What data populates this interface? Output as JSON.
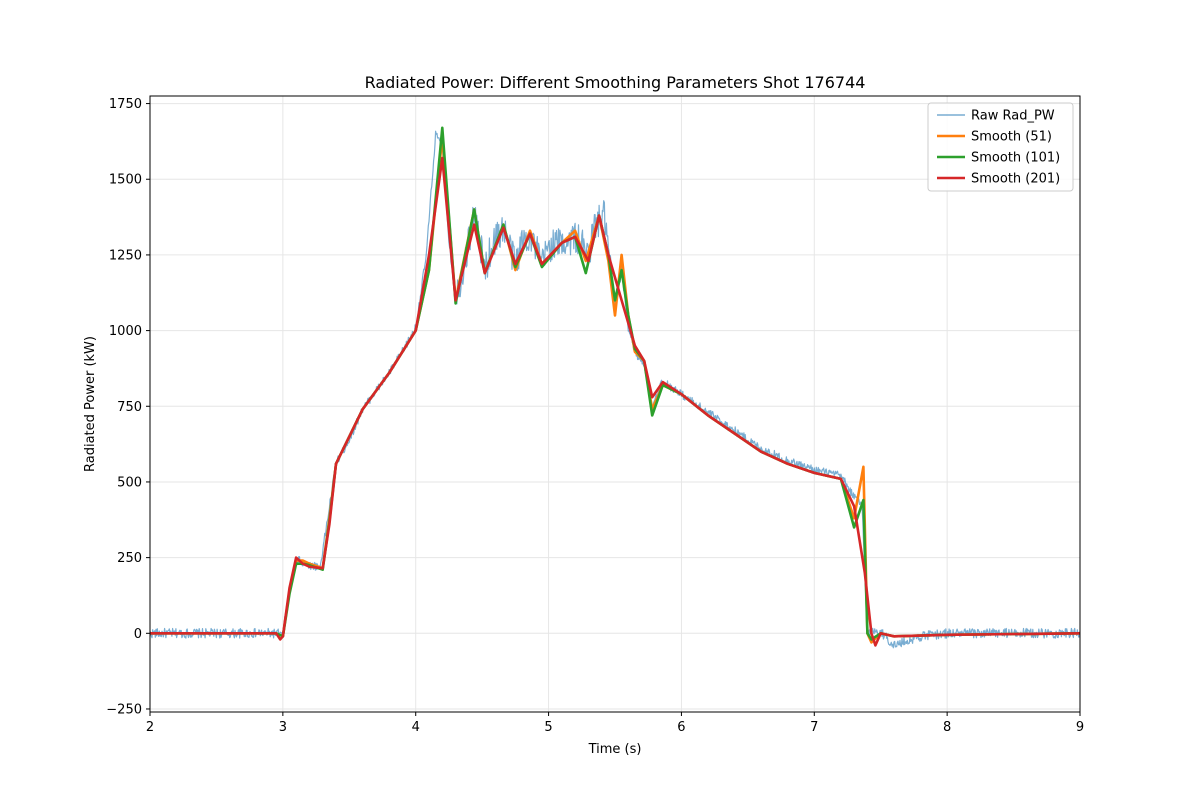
{
  "chart_data": {
    "type": "line",
    "title": "Radiated Power: Different Smoothing Parameters Shot 176744",
    "xlabel": "Time (s)",
    "ylabel": "Radiated Power (kW)",
    "xlim": [
      2,
      9
    ],
    "ylim": [
      -260,
      1775
    ],
    "xticks": [
      2,
      3,
      4,
      5,
      6,
      7,
      8,
      9
    ],
    "yticks": [
      -250,
      0,
      250,
      500,
      750,
      1000,
      1250,
      1500,
      1750
    ],
    "xtick_labels": [
      "2",
      "3",
      "4",
      "5",
      "6",
      "7",
      "8",
      "9"
    ],
    "ytick_labels": [
      "−250",
      "0",
      "250",
      "500",
      "750",
      "1000",
      "1250",
      "1500",
      "1750"
    ],
    "grid": true,
    "legend_position": "top-right",
    "series": [
      {
        "name": "Raw Rad_PW",
        "color": "#1f77b4",
        "style": "thin-noisy",
        "x": [
          2.0,
          2.95,
          3.0,
          3.05,
          3.1,
          3.12,
          3.15,
          3.2,
          3.28,
          3.32,
          3.4,
          3.5,
          3.6,
          3.7,
          3.8,
          3.9,
          4.0,
          4.08,
          4.15,
          4.2,
          4.25,
          4.3,
          4.38,
          4.44,
          4.52,
          4.58,
          4.66,
          4.75,
          4.8,
          4.86,
          4.95,
          5.0,
          5.1,
          5.2,
          5.3,
          5.35,
          5.42,
          5.5,
          5.55,
          5.6,
          5.65,
          5.72,
          5.78,
          5.85,
          5.9,
          6.0,
          6.2,
          6.4,
          6.6,
          6.8,
          7.0,
          7.2,
          7.3,
          7.36,
          7.38,
          7.4,
          7.45,
          7.5,
          7.6,
          7.8,
          8.0,
          8.5,
          9.0
        ],
        "y": [
          0,
          0,
          -5,
          150,
          230,
          250,
          230,
          225,
          220,
          330,
          560,
          640,
          740,
          800,
          860,
          930,
          1010,
          1250,
          1650,
          1600,
          1300,
          1100,
          1250,
          1390,
          1200,
          1290,
          1340,
          1220,
          1290,
          1320,
          1220,
          1280,
          1290,
          1310,
          1250,
          1350,
          1380,
          1070,
          1200,
          1010,
          930,
          890,
          740,
          830,
          820,
          790,
          730,
          670,
          610,
          570,
          540,
          520,
          450,
          420,
          200,
          0,
          10,
          5,
          -40,
          -10,
          0,
          0,
          0
        ]
      },
      {
        "name": "Smooth (51)",
        "color": "#ff7f0e",
        "style": "thick",
        "x": [
          2.0,
          2.95,
          3.0,
          3.05,
          3.1,
          3.15,
          3.2,
          3.3,
          3.35,
          3.4,
          3.6,
          3.8,
          4.0,
          4.1,
          4.2,
          4.3,
          4.44,
          4.52,
          4.66,
          4.75,
          4.86,
          4.95,
          5.1,
          5.2,
          5.28,
          5.38,
          5.45,
          5.5,
          5.55,
          5.6,
          5.65,
          5.72,
          5.78,
          5.86,
          6.0,
          6.2,
          6.4,
          6.6,
          6.8,
          7.0,
          7.2,
          7.3,
          7.37,
          7.4,
          7.43,
          7.5,
          7.6,
          8.0,
          9.0
        ],
        "y": [
          0,
          0,
          -10,
          140,
          240,
          240,
          230,
          215,
          380,
          560,
          740,
          860,
          1000,
          1200,
          1640,
          1100,
          1400,
          1190,
          1350,
          1200,
          1330,
          1220,
          1290,
          1330,
          1230,
          1380,
          1230,
          1050,
          1250,
          1050,
          930,
          900,
          740,
          820,
          790,
          720,
          660,
          600,
          560,
          530,
          510,
          380,
          550,
          0,
          -30,
          0,
          -10,
          -5,
          0
        ]
      },
      {
        "name": "Smooth (101)",
        "color": "#2ca02c",
        "style": "thick",
        "x": [
          2.0,
          2.95,
          3.0,
          3.05,
          3.1,
          3.15,
          3.2,
          3.3,
          3.35,
          3.4,
          3.6,
          3.8,
          4.0,
          4.1,
          4.2,
          4.3,
          4.44,
          4.52,
          4.66,
          4.75,
          4.86,
          4.95,
          5.1,
          5.2,
          5.28,
          5.38,
          5.45,
          5.5,
          5.55,
          5.6,
          5.65,
          5.72,
          5.78,
          5.86,
          6.0,
          6.2,
          6.4,
          6.6,
          6.8,
          7.0,
          7.2,
          7.3,
          7.37,
          7.4,
          7.43,
          7.5,
          7.6,
          8.0,
          9.0
        ],
        "y": [
          0,
          0,
          -10,
          130,
          230,
          230,
          225,
          210,
          370,
          560,
          740,
          860,
          1000,
          1200,
          1670,
          1090,
          1400,
          1190,
          1350,
          1210,
          1320,
          1210,
          1290,
          1310,
          1190,
          1380,
          1250,
          1100,
          1200,
          1050,
          940,
          900,
          720,
          820,
          790,
          720,
          660,
          600,
          560,
          530,
          510,
          350,
          440,
          0,
          -20,
          0,
          -10,
          -5,
          0
        ]
      },
      {
        "name": "Smooth (201)",
        "color": "#d62728",
        "style": "thick",
        "x": [
          2.0,
          2.95,
          2.98,
          3.0,
          3.05,
          3.1,
          3.15,
          3.2,
          3.3,
          3.35,
          3.4,
          3.6,
          3.8,
          4.0,
          4.1,
          4.2,
          4.3,
          4.44,
          4.52,
          4.66,
          4.75,
          4.86,
          4.95,
          5.1,
          5.2,
          5.3,
          5.38,
          5.45,
          5.55,
          5.65,
          5.72,
          5.78,
          5.86,
          6.0,
          6.2,
          6.4,
          6.6,
          6.8,
          7.0,
          7.2,
          7.3,
          7.38,
          7.43,
          7.46,
          7.5,
          7.6,
          8.0,
          9.0
        ],
        "y": [
          0,
          0,
          -20,
          -10,
          150,
          250,
          230,
          220,
          215,
          360,
          560,
          740,
          860,
          1000,
          1250,
          1570,
          1100,
          1350,
          1190,
          1340,
          1220,
          1320,
          1220,
          1290,
          1310,
          1230,
          1380,
          1250,
          1100,
          950,
          900,
          780,
          830,
          790,
          720,
          660,
          600,
          560,
          530,
          510,
          420,
          200,
          0,
          -40,
          0,
          -10,
          -5,
          0
        ]
      }
    ]
  }
}
